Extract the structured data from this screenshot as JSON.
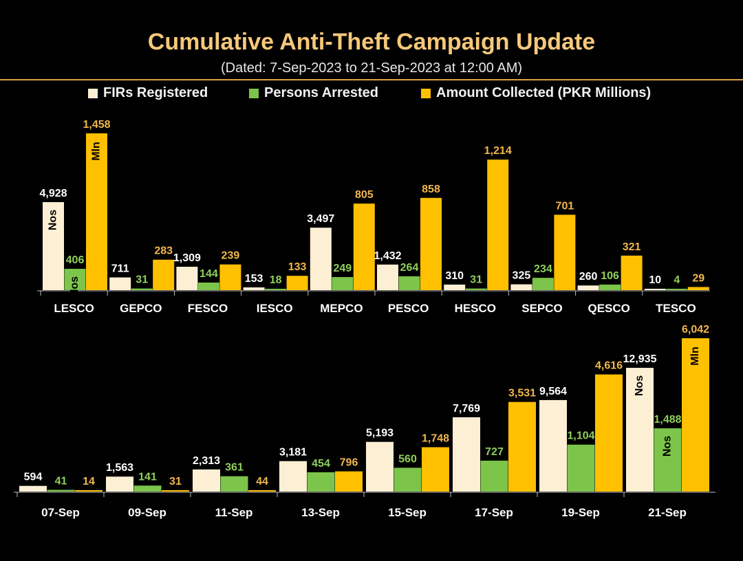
{
  "header": {
    "title": "Cumulative Anti-Theft Campaign Update",
    "subtitle": "(Dated: 7-Sep-2023 to 21-Sep-2023 at 12:00 AM)"
  },
  "legend": {
    "firs": "FIRs Registered",
    "arrested": "Persons Arrested",
    "amount": "Amount Collected (PKR Millions)"
  },
  "colors": {
    "firs": "#FCEFD4",
    "arrested": "#7CC44A",
    "amount": "#FFC000",
    "background": "#000000",
    "firs_label": "#FFFFFF",
    "arrested_label": "#8FD05A",
    "amount_label": "#F2B84B"
  },
  "chart_data": [
    {
      "type": "bar",
      "categories": [
        "LESCO",
        "GEPCO",
        "FESCO",
        "IESCO",
        "MEPCO",
        "PESCO",
        "HESCO",
        "SEPCO",
        "QESCO",
        "TESCO"
      ],
      "series": [
        {
          "name": "FIRs Registered",
          "values": [
            4928,
            711,
            1309,
            153,
            3497,
            1432,
            310,
            325,
            260,
            10
          ],
          "labels": [
            "4,928",
            "711",
            "1,309",
            "153",
            "3,497",
            "1,432",
            "310",
            "325",
            "260",
            "10"
          ]
        },
        {
          "name": "Persons Arrested",
          "values": [
            406,
            31,
            144,
            18,
            249,
            264,
            31,
            234,
            106,
            4
          ],
          "labels": [
            "406",
            "31",
            "144",
            "18",
            "249",
            "264",
            "31",
            "234",
            "106",
            "4"
          ]
        },
        {
          "name": "Amount Collected (PKR Millions)",
          "values": [
            1458,
            283,
            239,
            133,
            805,
            858,
            1214,
            701,
            321,
            29
          ],
          "labels": [
            "1,458",
            "283",
            "239",
            "133",
            "805",
            "858",
            "1,214",
            "701",
            "321",
            "29"
          ]
        }
      ],
      "annotations": {
        "firs": "Nos",
        "arrested": "Nos",
        "amount": "Mln"
      }
    },
    {
      "type": "bar",
      "categories": [
        "07-Sep",
        "09-Sep",
        "11-Sep",
        "13-Sep",
        "15-Sep",
        "17-Sep",
        "19-Sep",
        "21-Sep"
      ],
      "series": [
        {
          "name": "FIRs Registered",
          "values": [
            594,
            1563,
            2313,
            3181,
            5193,
            7769,
            9564,
            12935
          ],
          "labels": [
            "594",
            "1,563",
            "2,313",
            "3,181",
            "5,193",
            "7,769",
            "9,564",
            "12,935"
          ]
        },
        {
          "name": "Persons Arrested",
          "values": [
            41,
            141,
            361,
            454,
            560,
            727,
            1104,
            1488
          ],
          "labels": [
            "41",
            "141",
            "361",
            "454",
            "560",
            "727",
            "1,104",
            "1,488"
          ]
        },
        {
          "name": "Amount Collected (PKR Millions)",
          "values": [
            14,
            31,
            44,
            796,
            1748,
            3531,
            4616,
            6042
          ],
          "labels": [
            "14",
            "31",
            "44",
            "796",
            "1,748",
            "3,531",
            "4,616",
            "6,042"
          ]
        }
      ],
      "annotations": {
        "firs": "Nos",
        "arrested": "Nos",
        "amount": "Mln"
      }
    }
  ]
}
